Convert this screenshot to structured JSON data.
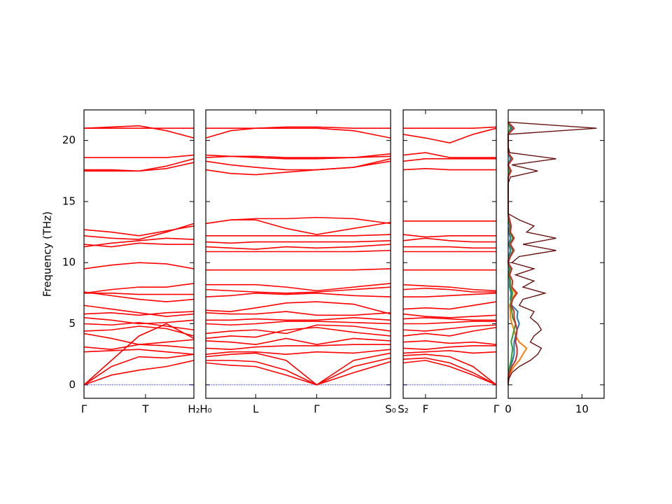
{
  "chart_data": [
    {
      "type": "line",
      "ylabel": "Frequency (THz)",
      "ylim": [
        -1.1,
        22.5
      ],
      "yticks": [
        0,
        5,
        10,
        15,
        20
      ],
      "color": "#ff0000",
      "xlim": [
        0,
        1
      ],
      "xticks": [
        {
          "value": 0,
          "label": "Γ"
        },
        {
          "value": 0.56,
          "label": "T"
        },
        {
          "value": 1,
          "label": "H₂"
        }
      ],
      "x": [
        0,
        0.25,
        0.5,
        0.75,
        1
      ],
      "series": [
        {
          "values": [
            0,
            0.8,
            1.2,
            1.5,
            2.0
          ]
        },
        {
          "values": [
            0,
            1.5,
            2.3,
            2.2,
            2.5
          ]
        },
        {
          "values": [
            0,
            2.0,
            4.0,
            5.0,
            3.8
          ]
        },
        {
          "values": [
            2.7,
            2.8,
            2.9,
            2.7,
            2.5
          ]
        },
        {
          "values": [
            3.1,
            2.9,
            3.3,
            3.2,
            3.0
          ]
        },
        {
          "values": [
            4.2,
            3.8,
            3.3,
            3.5,
            3.7
          ]
        },
        {
          "values": [
            4.4,
            4.5,
            4.8,
            4.6,
            4.0
          ]
        },
        {
          "values": [
            5.0,
            4.9,
            5.1,
            4.8,
            4.5
          ]
        },
        {
          "values": [
            5.5,
            5.3,
            5.0,
            5.1,
            5.3
          ]
        },
        {
          "values": [
            5.8,
            5.9,
            5.7,
            5.9,
            6.0
          ]
        },
        {
          "values": [
            6.5,
            6.2,
            5.9,
            5.6,
            5.8
          ]
        },
        {
          "values": [
            7.5,
            7.5,
            7.4,
            7.4,
            7.4
          ]
        },
        {
          "values": [
            7.5,
            7.8,
            8.0,
            8.0,
            8.3
          ]
        },
        {
          "values": [
            7.6,
            7.3,
            7.0,
            6.8,
            7.0
          ]
        },
        {
          "values": [
            9.5,
            9.8,
            10.0,
            9.9,
            9.5
          ]
        },
        {
          "values": [
            11.3,
            11.6,
            11.8,
            12.0,
            11.9
          ]
        },
        {
          "values": [
            11.5,
            11.3,
            11.6,
            11.5,
            11.5
          ]
        },
        {
          "values": [
            12.2,
            12.0,
            11.9,
            12.5,
            13.2
          ]
        },
        {
          "values": [
            12.7,
            12.5,
            12.2,
            12.6,
            13.0
          ]
        },
        {
          "values": [
            17.5,
            17.5,
            17.5,
            17.7,
            18.2
          ]
        },
        {
          "values": [
            17.6,
            17.6,
            17.5,
            17.9,
            18.5
          ]
        },
        {
          "values": [
            18.6,
            18.6,
            18.6,
            18.6,
            18.8
          ]
        },
        {
          "values": [
            21.0,
            21.1,
            21.2,
            20.8,
            20.2
          ]
        },
        {
          "values": [
            21.0,
            21.0,
            21.0,
            21.0,
            21.0
          ]
        }
      ]
    },
    {
      "type": "line",
      "color": "#ff0000",
      "xlim": [
        0,
        1
      ],
      "xticks": [
        {
          "value": 0,
          "label": "H₀"
        },
        {
          "value": 0.27,
          "label": "L"
        },
        {
          "value": 0.6,
          "label": "Γ"
        },
        {
          "value": 1,
          "label": "S₀"
        }
      ],
      "x": [
        0,
        0.135,
        0.27,
        0.435,
        0.6,
        0.8,
        1
      ],
      "series": [
        {
          "values": [
            1.8,
            1.6,
            1.5,
            0.8,
            0,
            1.0,
            1.9
          ]
        },
        {
          "values": [
            2.0,
            2.0,
            1.9,
            1.2,
            0,
            1.5,
            2.2
          ]
        },
        {
          "values": [
            2.3,
            2.5,
            2.6,
            2.0,
            0,
            2.0,
            2.6
          ]
        },
        {
          "values": [
            2.5,
            2.7,
            2.7,
            2.5,
            2.7,
            2.6,
            2.9
          ]
        },
        {
          "values": [
            3.0,
            2.9,
            3.1,
            3.2,
            3.2,
            3.3,
            3.3
          ]
        },
        {
          "values": [
            3.6,
            3.5,
            3.3,
            3.8,
            3.3,
            3.8,
            3.6
          ]
        },
        {
          "values": [
            3.8,
            4.0,
            3.9,
            4.5,
            4.7,
            4.3,
            4.0
          ]
        },
        {
          "values": [
            4.2,
            4.4,
            4.5,
            4.2,
            4.9,
            4.8,
            4.4
          ]
        },
        {
          "values": [
            5.0,
            4.9,
            5.0,
            5.2,
            5.2,
            5.1,
            5.0
          ]
        },
        {
          "values": [
            5.3,
            5.3,
            5.4,
            5.3,
            5.3,
            5.5,
            5.3
          ]
        },
        {
          "values": [
            5.9,
            5.8,
            5.8,
            6.0,
            5.7,
            5.7,
            5.9
          ]
        },
        {
          "values": [
            6.1,
            6.0,
            6.3,
            6.7,
            6.8,
            6.6,
            5.8
          ]
        },
        {
          "values": [
            7.2,
            7.3,
            7.5,
            7.4,
            7.5,
            7.3,
            7.2
          ]
        },
        {
          "values": [
            7.8,
            7.7,
            7.6,
            7.5,
            7.6,
            7.8,
            8.0
          ]
        },
        {
          "values": [
            8.2,
            8.2,
            8.2,
            8.0,
            7.7,
            8.0,
            8.3
          ]
        },
        {
          "values": [
            9.4,
            9.4,
            9.4,
            9.4,
            9.4,
            9.4,
            9.5
          ]
        },
        {
          "values": [
            10.9,
            10.9,
            10.9,
            10.9,
            10.9,
            10.9,
            11.0
          ]
        },
        {
          "values": [
            11.3,
            11.2,
            11.1,
            11.3,
            11.2,
            11.3,
            11.5
          ]
        },
        {
          "values": [
            11.7,
            11.6,
            11.7,
            11.7,
            11.7,
            11.7,
            11.8
          ]
        },
        {
          "values": [
            12.2,
            12.2,
            12.2,
            12.2,
            12.2,
            12.2,
            12.3
          ]
        },
        {
          "values": [
            13.2,
            13.5,
            13.5,
            12.8,
            12.3,
            12.8,
            13.3
          ]
        },
        {
          "values": [
            13.2,
            13.5,
            13.6,
            13.6,
            13.7,
            13.6,
            13.2
          ]
        },
        {
          "values": [
            17.6,
            17.3,
            17.2,
            17.4,
            17.6,
            17.8,
            18.3
          ]
        },
        {
          "values": [
            18.3,
            18.0,
            17.8,
            17.6,
            17.6,
            17.8,
            18.5
          ]
        },
        {
          "values": [
            18.6,
            18.7,
            18.6,
            18.5,
            18.5,
            18.6,
            18.7
          ]
        },
        {
          "values": [
            18.8,
            18.7,
            18.7,
            18.6,
            18.6,
            18.6,
            18.9
          ]
        },
        {
          "values": [
            20.2,
            20.8,
            21.0,
            21.0,
            21.0,
            20.8,
            20.2
          ]
        },
        {
          "values": [
            21.0,
            21.0,
            21.0,
            21.1,
            21.1,
            21.0,
            21.0
          ]
        }
      ]
    },
    {
      "type": "line",
      "color": "#ff0000",
      "xlim": [
        0,
        1
      ],
      "xticks": [
        {
          "value": 0,
          "label": "S₂"
        },
        {
          "value": 0.24,
          "label": "F"
        },
        {
          "value": 1,
          "label": "Γ"
        }
      ],
      "x": [
        0,
        0.24,
        0.5,
        0.75,
        1
      ],
      "series": [
        {
          "values": [
            1.8,
            2.0,
            1.5,
            0.8,
            0
          ]
        },
        {
          "values": [
            2.1,
            2.2,
            1.8,
            1.0,
            0
          ]
        },
        {
          "values": [
            2.4,
            2.5,
            2.3,
            1.5,
            0
          ]
        },
        {
          "values": [
            2.6,
            2.7,
            2.8,
            2.6,
            2.7
          ]
        },
        {
          "values": [
            3.0,
            2.9,
            3.1,
            3.2,
            3.2
          ]
        },
        {
          "values": [
            3.5,
            3.6,
            3.4,
            3.5,
            3.3
          ]
        },
        {
          "values": [
            4.0,
            4.2,
            4.0,
            4.4,
            4.7
          ]
        },
        {
          "values": [
            4.5,
            4.4,
            4.6,
            4.8,
            4.9
          ]
        },
        {
          "values": [
            5.0,
            5.0,
            5.1,
            5.2,
            5.2
          ]
        },
        {
          "values": [
            5.4,
            5.5,
            5.4,
            5.3,
            5.3
          ]
        },
        {
          "values": [
            5.8,
            5.6,
            5.5,
            5.6,
            5.7
          ]
        },
        {
          "values": [
            6.2,
            6.3,
            6.2,
            6.5,
            6.8
          ]
        },
        {
          "values": [
            7.2,
            7.2,
            7.3,
            7.4,
            7.5
          ]
        },
        {
          "values": [
            7.8,
            7.9,
            7.8,
            7.6,
            7.6
          ]
        },
        {
          "values": [
            8.2,
            8.1,
            8.0,
            7.8,
            7.7
          ]
        },
        {
          "values": [
            9.4,
            9.4,
            9.4,
            9.4,
            9.4
          ]
        },
        {
          "values": [
            10.9,
            10.9,
            10.9,
            10.9,
            10.9
          ]
        },
        {
          "values": [
            11.3,
            11.3,
            11.3,
            11.2,
            11.2
          ]
        },
        {
          "values": [
            11.8,
            12.0,
            11.8,
            11.7,
            11.7
          ]
        },
        {
          "values": [
            12.3,
            12.1,
            12.2,
            12.2,
            12.2
          ]
        },
        {
          "values": [
            13.4,
            13.4,
            13.4,
            13.4,
            13.4
          ]
        },
        {
          "values": [
            17.6,
            17.7,
            17.6,
            17.6,
            17.6
          ]
        },
        {
          "values": [
            18.3,
            18.5,
            18.5,
            18.5,
            18.5
          ]
        },
        {
          "values": [
            18.8,
            19.0,
            18.6,
            18.6,
            18.6
          ]
        },
        {
          "values": [
            20.5,
            20.2,
            19.8,
            20.5,
            21.0
          ]
        },
        {
          "values": [
            21.0,
            21.0,
            21.0,
            21.0,
            21.1
          ]
        }
      ]
    },
    {
      "type": "dos",
      "xlim": [
        0,
        13
      ],
      "xticks": [
        0,
        10
      ],
      "y": [
        0,
        0.5,
        1,
        1.5,
        2,
        2.5,
        3,
        3.5,
        4,
        4.5,
        5,
        5.5,
        6,
        6.5,
        7,
        7.5,
        8,
        8.5,
        9,
        9.5,
        10,
        10.5,
        11,
        11.5,
        12,
        12.5,
        13,
        13.5,
        14,
        14.5,
        15,
        15.5,
        16,
        16.5,
        17,
        17.5,
        18,
        18.5,
        19,
        19.5,
        20,
        20.5,
        21,
        21.5
      ],
      "series": [
        {
          "color": "#ff7f0e",
          "values": [
            0,
            0,
            0.3,
            0.8,
            1.5,
            2,
            2.5,
            1.5,
            1,
            0.8,
            0.5,
            0.3,
            0.3,
            0.2,
            0.5,
            1,
            0.3,
            0.3,
            0.1,
            0.2,
            0,
            0.1,
            0.3,
            0.1,
            0.3,
            0.1,
            0.2,
            0.1,
            0,
            0,
            0,
            0,
            0,
            0,
            0,
            0.3,
            0,
            0.4,
            0,
            0,
            0,
            0,
            0.6,
            0
          ]
        },
        {
          "color": "#1f77b4",
          "values": [
            0,
            0,
            0.1,
            0.3,
            0.6,
            0.8,
            0.8,
            0.8,
            1,
            1.2,
            1.5,
            1.2,
            1.3,
            0.5,
            0.3,
            0.4,
            0.2,
            0.2,
            0.1,
            0.2,
            0,
            0.1,
            0.3,
            0.1,
            0.3,
            0.1,
            0.2,
            0.1,
            0,
            0,
            0,
            0,
            0,
            0,
            0,
            0.2,
            0,
            0.3,
            0,
            0,
            0,
            0,
            0.5,
            0
          ]
        },
        {
          "color": "#2ca02c",
          "values": [
            0,
            0,
            0.1,
            0.2,
            0.4,
            0.5,
            0.6,
            0.4,
            0.6,
            0.8,
            1,
            0.6,
            0.5,
            0.3,
            0.4,
            0.6,
            0.3,
            0.3,
            0.1,
            0.3,
            0,
            0.2,
            0.6,
            0.2,
            0.6,
            0.2,
            0.3,
            0.1,
            0,
            0,
            0,
            0,
            0,
            0,
            0,
            0.2,
            0,
            0.5,
            0,
            0,
            0,
            0,
            0.3,
            0
          ]
        },
        {
          "color": "#d62728",
          "values": [
            0,
            0,
            0.2,
            0.5,
            1,
            1.2,
            1.2,
            1,
            1.1,
            1.2,
            1,
            0.8,
            0.8,
            0.4,
            0.6,
            1.2,
            0.5,
            0.6,
            0.2,
            0.5,
            0,
            0.3,
            0.8,
            0.3,
            0.8,
            0.3,
            0.4,
            0.2,
            0,
            0,
            0,
            0,
            0,
            0,
            0,
            0.4,
            0,
            0.6,
            0,
            0,
            0,
            0,
            0.8,
            0
          ]
        },
        {
          "color": "#8b1a1a",
          "values": [
            0,
            0.1,
            0.5,
            1.5,
            3,
            4,
            4.5,
            3,
            3.5,
            4.5,
            4,
            3,
            3.5,
            1.5,
            2,
            5,
            2,
            3.5,
            1,
            3.5,
            0.5,
            1.5,
            6.5,
            2,
            6.5,
            2.5,
            3.5,
            1.5,
            0,
            0,
            0,
            0,
            0,
            0,
            0.3,
            4,
            0.5,
            6.5,
            0.2,
            0,
            0,
            0,
            12,
            0
          ]
        }
      ]
    }
  ]
}
